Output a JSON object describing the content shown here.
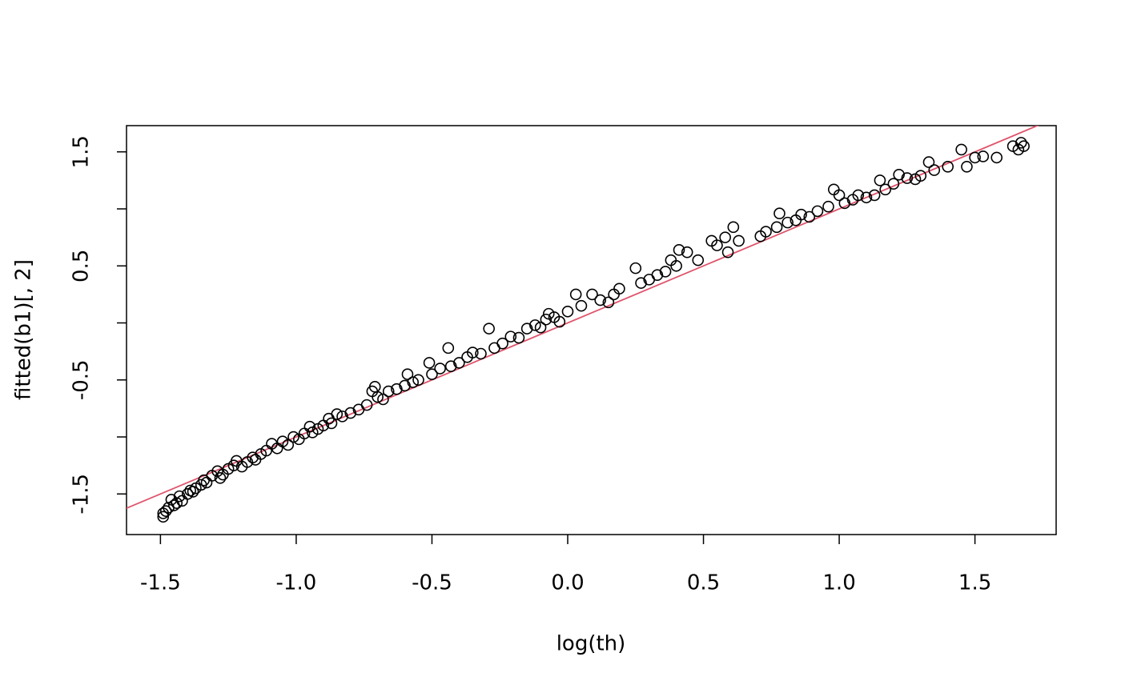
{
  "chart_data": {
    "type": "scatter",
    "xlabel": "log(th)",
    "ylabel": "fitted(b1)[, 2]",
    "xlim": [
      -1.625,
      1.799
    ],
    "ylim": [
      -1.856,
      1.73
    ],
    "xticks": [
      -1.5,
      {
        "value": -1,
        "label": "-1.0"
      },
      -0.5,
      {
        "value": 0,
        "label": "0.0"
      },
      0.5,
      {
        "value": 1,
        "label": "1.0"
      },
      1.5
    ],
    "yticks": [
      -1.5,
      {
        "value": -1,
        "label": null
      },
      -0.5,
      {
        "value": 0,
        "label": null
      },
      0.5,
      {
        "value": 1,
        "label": null
      },
      1.5
    ],
    "marker_color": "#000000",
    "reference_line": {
      "intercept": 0,
      "slope": 1,
      "color": "#DF536B"
    },
    "x": [
      -1.49,
      -1.49,
      -1.48,
      -1.47,
      -1.46,
      -1.45,
      -1.44,
      -1.43,
      -1.42,
      -1.4,
      -1.39,
      -1.38,
      -1.37,
      -1.35,
      -1.34,
      -1.33,
      -1.31,
      -1.29,
      -1.28,
      -1.27,
      -1.25,
      -1.23,
      -1.22,
      -1.2,
      -1.18,
      -1.16,
      -1.15,
      -1.13,
      -1.11,
      -1.09,
      -1.07,
      -1.05,
      -1.03,
      -1.01,
      -0.99,
      -0.97,
      -0.95,
      -0.94,
      -0.92,
      -0.9,
      -0.88,
      -0.87,
      -0.85,
      -0.83,
      -0.8,
      -0.77,
      -0.74,
      -0.72,
      -0.71,
      -0.7,
      -0.68,
      -0.66,
      -0.63,
      -0.6,
      -0.59,
      -0.57,
      -0.55,
      -0.51,
      -0.5,
      -0.47,
      -0.44,
      -0.43,
      -0.4,
      -0.37,
      -0.35,
      -0.32,
      -0.29,
      -0.27,
      -0.24,
      -0.21,
      -0.18,
      -0.15,
      -0.12,
      -0.1,
      -0.08,
      -0.07,
      -0.05,
      -0.03,
      0.0,
      0.03,
      0.05,
      0.09,
      0.12,
      0.15,
      0.17,
      0.19,
      0.25,
      0.27,
      0.3,
      0.33,
      0.36,
      0.38,
      0.4,
      0.41,
      0.44,
      0.48,
      0.53,
      0.55,
      0.58,
      0.59,
      0.61,
      0.63,
      0.71,
      0.73,
      0.77,
      0.78,
      0.81,
      0.84,
      0.86,
      0.89,
      0.92,
      0.96,
      0.98,
      1.0,
      1.02,
      1.05,
      1.07,
      1.1,
      1.13,
      1.15,
      1.17,
      1.2,
      1.22,
      1.25,
      1.28,
      1.3,
      1.33,
      1.35,
      1.4,
      1.45,
      1.47,
      1.5,
      1.53,
      1.58,
      1.64,
      1.66,
      1.67,
      1.68
    ],
    "y": [
      -1.67,
      -1.7,
      -1.65,
      -1.62,
      -1.55,
      -1.6,
      -1.58,
      -1.52,
      -1.56,
      -1.5,
      -1.47,
      -1.48,
      -1.45,
      -1.42,
      -1.38,
      -1.4,
      -1.34,
      -1.3,
      -1.36,
      -1.33,
      -1.28,
      -1.25,
      -1.21,
      -1.26,
      -1.22,
      -1.18,
      -1.2,
      -1.15,
      -1.12,
      -1.06,
      -1.1,
      -1.04,
      -1.07,
      -1.0,
      -1.02,
      -0.97,
      -0.91,
      -0.96,
      -0.93,
      -0.9,
      -0.84,
      -0.88,
      -0.8,
      -0.82,
      -0.79,
      -0.76,
      -0.72,
      -0.6,
      -0.56,
      -0.65,
      -0.67,
      -0.6,
      -0.58,
      -0.55,
      -0.45,
      -0.52,
      -0.5,
      -0.35,
      -0.45,
      -0.4,
      -0.22,
      -0.38,
      -0.35,
      -0.3,
      -0.26,
      -0.27,
      -0.05,
      -0.22,
      -0.18,
      -0.12,
      -0.13,
      -0.05,
      -0.02,
      -0.04,
      0.03,
      0.08,
      0.05,
      0.01,
      0.1,
      0.25,
      0.15,
      0.25,
      0.2,
      0.18,
      0.25,
      0.3,
      0.48,
      0.35,
      0.38,
      0.42,
      0.45,
      0.55,
      0.5,
      0.64,
      0.62,
      0.55,
      0.72,
      0.68,
      0.75,
      0.62,
      0.84,
      0.72,
      0.76,
      0.8,
      0.84,
      0.96,
      0.88,
      0.9,
      0.95,
      0.93,
      0.98,
      1.02,
      1.17,
      1.12,
      1.05,
      1.08,
      1.12,
      1.1,
      1.12,
      1.25,
      1.17,
      1.22,
      1.3,
      1.27,
      1.26,
      1.29,
      1.41,
      1.34,
      1.37,
      1.52,
      1.37,
      1.45,
      1.46,
      1.45,
      1.55,
      1.52,
      1.58,
      1.55
    ]
  }
}
